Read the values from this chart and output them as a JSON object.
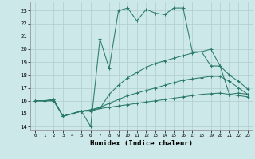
{
  "xlabel": "Humidex (Indice chaleur)",
  "xlim": [
    -0.5,
    23.5
  ],
  "ylim": [
    13.7,
    23.7
  ],
  "yticks": [
    14,
    15,
    16,
    17,
    18,
    19,
    20,
    21,
    22,
    23
  ],
  "xticks": [
    0,
    1,
    2,
    3,
    4,
    5,
    6,
    7,
    8,
    9,
    10,
    11,
    12,
    13,
    14,
    15,
    16,
    17,
    18,
    19,
    20,
    21,
    22,
    23
  ],
  "bg_color": "#cde8e8",
  "line_color": "#2a7a6a",
  "grid_color": "#b0cccc",
  "line1_x": [
    0,
    1,
    2,
    3,
    4,
    5,
    6,
    7,
    8,
    9,
    10,
    11,
    12,
    13,
    14,
    15,
    16,
    17,
    18,
    19,
    20,
    21,
    22,
    23
  ],
  "line1_y": [
    16.0,
    16.0,
    16.1,
    14.8,
    15.0,
    15.2,
    14.0,
    20.8,
    18.5,
    23.0,
    23.2,
    22.2,
    23.1,
    22.8,
    22.7,
    23.2,
    23.2,
    19.8,
    19.8,
    20.0,
    18.7,
    16.5,
    16.6,
    16.5
  ],
  "line2_x": [
    0,
    1,
    2,
    3,
    4,
    5,
    6,
    7,
    8,
    9,
    10,
    11,
    12,
    13,
    14,
    15,
    16,
    17,
    18,
    19,
    20,
    21,
    22,
    23
  ],
  "line2_y": [
    16.0,
    16.0,
    16.1,
    14.8,
    15.0,
    15.2,
    15.2,
    15.4,
    16.5,
    17.2,
    17.8,
    18.2,
    18.6,
    18.9,
    19.1,
    19.3,
    19.5,
    19.7,
    19.8,
    18.7,
    18.7,
    18.0,
    17.5,
    16.9
  ],
  "line3_x": [
    0,
    1,
    2,
    3,
    4,
    5,
    6,
    7,
    8,
    9,
    10,
    11,
    12,
    13,
    14,
    15,
    16,
    17,
    18,
    19,
    20,
    21,
    22,
    23
  ],
  "line3_y": [
    16.0,
    16.0,
    16.0,
    14.8,
    15.0,
    15.2,
    15.3,
    15.5,
    15.8,
    16.1,
    16.4,
    16.6,
    16.8,
    17.0,
    17.2,
    17.4,
    17.6,
    17.7,
    17.8,
    17.9,
    17.9,
    17.5,
    17.0,
    16.5
  ],
  "line4_x": [
    0,
    1,
    2,
    3,
    4,
    5,
    6,
    7,
    8,
    9,
    10,
    11,
    12,
    13,
    14,
    15,
    16,
    17,
    18,
    19,
    20,
    21,
    22,
    23
  ],
  "line4_y": [
    16.0,
    16.0,
    16.0,
    14.8,
    15.0,
    15.2,
    15.3,
    15.4,
    15.5,
    15.6,
    15.7,
    15.8,
    15.9,
    16.0,
    16.1,
    16.2,
    16.3,
    16.4,
    16.5,
    16.55,
    16.6,
    16.5,
    16.4,
    16.3
  ]
}
